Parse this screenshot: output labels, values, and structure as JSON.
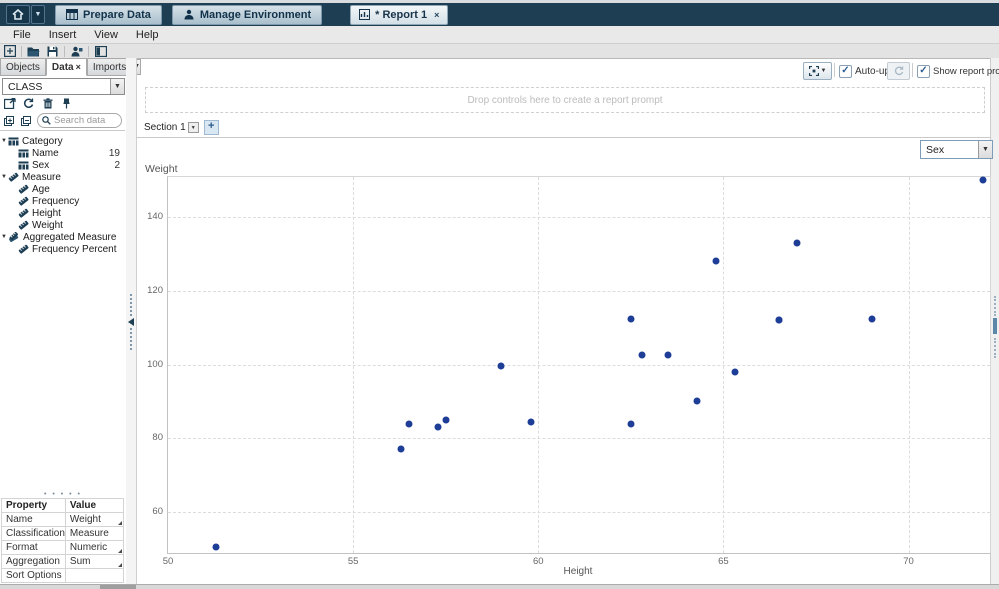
{
  "app_bar": {
    "buttons": [
      {
        "label": "Prepare Data",
        "icon": "table-edit-icon"
      },
      {
        "label": "Manage Environment",
        "icon": "users-icon"
      }
    ],
    "report_tab": {
      "label": "* Report 1",
      "icon": "report-icon",
      "close": "×"
    }
  },
  "menu_bar": {
    "items": [
      "File",
      "Insert",
      "View",
      "Help"
    ]
  },
  "left_panel": {
    "tabs": [
      {
        "label": "Objects"
      },
      {
        "label": "Data",
        "close": "×"
      },
      {
        "label": "Imports"
      }
    ],
    "data_source": "CLASS",
    "search_placeholder": "Search data",
    "tree": {
      "groups": [
        {
          "label": "Category",
          "items": [
            {
              "label": "Name",
              "count": "19"
            },
            {
              "label": "Sex",
              "count": "2"
            }
          ]
        },
        {
          "label": "Measure",
          "items": [
            {
              "label": "Age"
            },
            {
              "label": "Frequency"
            },
            {
              "label": "Height"
            },
            {
              "label": "Weight"
            }
          ]
        },
        {
          "label": "Aggregated Measure",
          "items": [
            {
              "label": "Frequency Percent"
            }
          ]
        }
      ]
    },
    "properties": {
      "col1": "Property",
      "col2": "Value",
      "rows": [
        {
          "p": "Name",
          "v": "Weight"
        },
        {
          "p": "Classification",
          "v": "Measure"
        },
        {
          "p": "Format",
          "v": "Numeric"
        },
        {
          "p": "Aggregation",
          "v": "Sum"
        },
        {
          "p": "Sort Options",
          "v": ""
        }
      ]
    }
  },
  "canvas": {
    "auto_update": "Auto-update",
    "show_report_prompts": "Show report prompts",
    "drop_prompt": "Drop controls here to create a report prompt",
    "section_tab": "Section 1",
    "add_section": "+",
    "category_filter": "Sex",
    "checkmark": "✓"
  },
  "chart_data": {
    "type": "scatter",
    "title": "",
    "xlabel": "Height",
    "ylabel": "Weight",
    "xlim": [
      50,
      72.2
    ],
    "ylim": [
      48.9,
      150.9
    ],
    "x_ticks": [
      50,
      55,
      60,
      65,
      70
    ],
    "y_ticks": [
      60,
      80,
      100,
      120,
      140
    ],
    "grid": "dashed",
    "legend": "none",
    "point_color": "#1e3d96",
    "points": [
      [
        51.3,
        50.5
      ],
      [
        56.3,
        77.0
      ],
      [
        56.5,
        84.0
      ],
      [
        57.3,
        83.0
      ],
      [
        57.5,
        85.0
      ],
      [
        59.0,
        99.5
      ],
      [
        59.8,
        84.5
      ],
      [
        62.5,
        84.0
      ],
      [
        62.5,
        112.5
      ],
      [
        62.8,
        102.5
      ],
      [
        63.5,
        102.5
      ],
      [
        64.3,
        90.0
      ],
      [
        64.8,
        128.0
      ],
      [
        65.3,
        98.0
      ],
      [
        66.5,
        112.0
      ],
      [
        66.5,
        112.0
      ],
      [
        67.0,
        133.0
      ],
      [
        69.0,
        112.5
      ],
      [
        72.0,
        150.0
      ]
    ]
  }
}
